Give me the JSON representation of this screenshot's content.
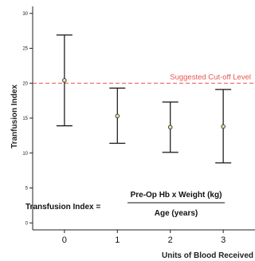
{
  "chart_data": {
    "type": "scatter",
    "xlabel": "Units of Blood Received",
    "ylabel": "Tranfusion Index",
    "x": [
      0,
      1,
      2,
      3
    ],
    "x_tick_labels": [
      "0",
      "1",
      "2",
      "3"
    ],
    "xlim": [
      -0.6,
      3.6
    ],
    "ylim": [
      -1,
      31
    ],
    "y_ticks": [
      0,
      5,
      10,
      15,
      20,
      25,
      30
    ],
    "y_tick_labels": [
      "0",
      "5",
      "10",
      "15",
      "20",
      "25",
      "30"
    ],
    "grid": false,
    "series": [
      {
        "mean": [
          20.4,
          15.3,
          13.7,
          13.8
        ],
        "lower": [
          13.9,
          11.4,
          10.1,
          8.6
        ],
        "upper": [
          26.9,
          19.3,
          17.3,
          19.1
        ]
      }
    ],
    "reference_line": {
      "value": 20,
      "label": "Suggested Cut-off Level",
      "color": "#e8554e"
    },
    "formula": {
      "lhs": "Transfusion Index =",
      "numerator": "Pre-Op Hb x Weight (kg)",
      "denominator": "Age (years)"
    },
    "colors": {
      "marker_fill": "#e9e3a3",
      "marker_edge": "#333333",
      "error_bar": "#111111",
      "axis": "#222222"
    }
  }
}
